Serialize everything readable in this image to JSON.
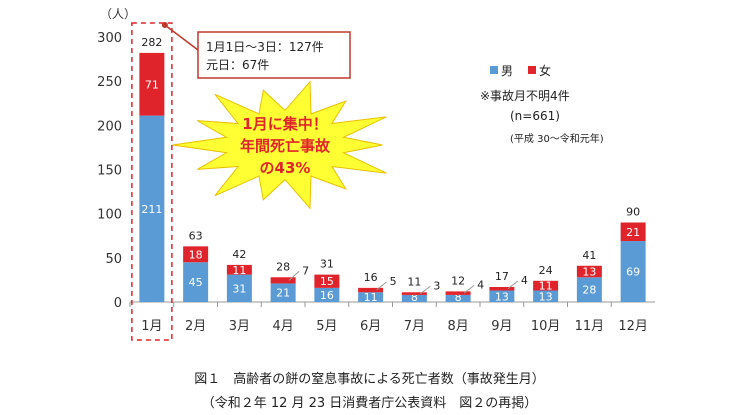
{
  "chart_data": {
    "type": "bar",
    "stacked": true,
    "unit_label": "（人）",
    "categories": [
      "1月",
      "2月",
      "3月",
      "4月",
      "5月",
      "6月",
      "7月",
      "8月",
      "9月",
      "10月",
      "11月",
      "12月"
    ],
    "series": [
      {
        "name": "男",
        "color": "#5b9bd5",
        "values": [
          211,
          45,
          31,
          21,
          16,
          11,
          8,
          8,
          13,
          13,
          28,
          69
        ]
      },
      {
        "name": "女",
        "color": "#e0242b",
        "values": [
          71,
          18,
          11,
          7,
          15,
          5,
          3,
          4,
          4,
          11,
          13,
          21
        ]
      }
    ],
    "totals": [
      282,
      63,
      42,
      28,
      31,
      16,
      11,
      12,
      17,
      24,
      41,
      90
    ],
    "ylim": [
      0,
      300
    ],
    "yticks": [
      0,
      50,
      100,
      150,
      200,
      250,
      300
    ],
    "grid": false,
    "legend": "top-right",
    "callout": [
      "1月1日〜3日：127件",
      "元日：67件"
    ],
    "burst": [
      "1月に集中！",
      "年間死亡事故",
      "の43%"
    ],
    "notes": [
      "※事故月不明4件",
      "(n=661)",
      "(平成 30〜令和元年)"
    ]
  },
  "caption": {
    "title": "図１　高齢者の餅の窒息事故による死亡者数（事故発生月）",
    "source": "（令和２年 12 月 23 日消費者庁公表資料　図２の再掲）"
  }
}
